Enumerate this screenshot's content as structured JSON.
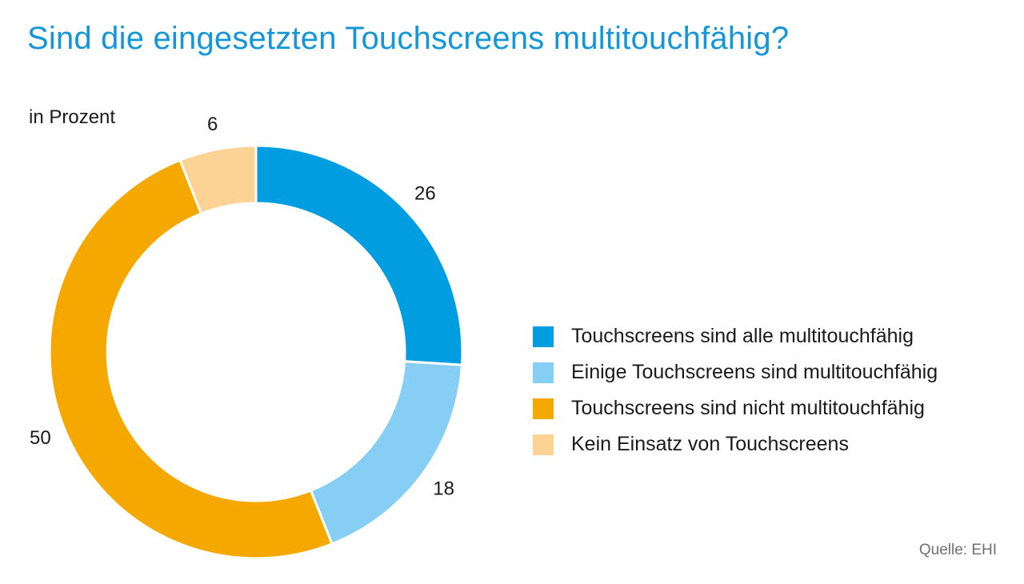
{
  "title": "Sind die eingesetzten Touchscreens multitouchfähig?",
  "subtitle": "in Prozent",
  "source": "Quelle: EHI",
  "chart_data": {
    "type": "pie",
    "variant": "donut",
    "unit": "in Prozent",
    "categories": [
      "Touchscreens sind alle multitouchfähig",
      "Einige Touchscreens sind multitouchfähig",
      "Touchscreens sind nicht multitouchfähig",
      "Kein Einsatz von Touchscreens"
    ],
    "values": [
      26,
      18,
      50,
      6
    ],
    "value_labels": [
      "26",
      "18",
      "50",
      "6"
    ],
    "colors": [
      "#009ee0",
      "#87cef4",
      "#f5a800",
      "#fcd395"
    ],
    "legend_position": "right",
    "title": "Sind die eingesetzten Touchscreens multitouchfähig?"
  }
}
